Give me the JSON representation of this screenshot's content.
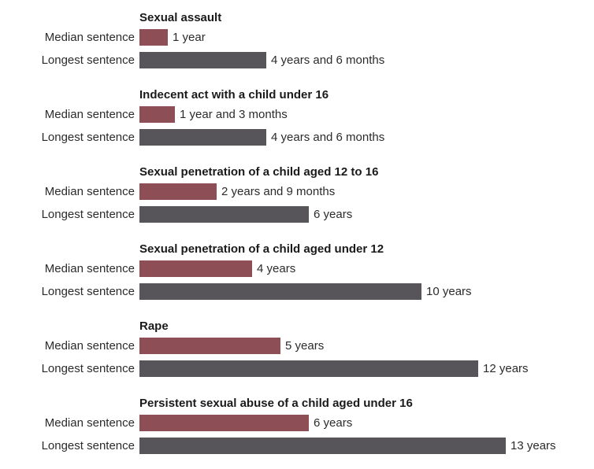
{
  "chart_data": {
    "type": "bar",
    "orientation": "horizontal",
    "title": "",
    "unit": "years",
    "xlim": [
      0,
      13
    ],
    "grid": false,
    "legend": "none",
    "row_labels": {
      "median": "Median sentence",
      "longest": "Longest sentence"
    },
    "colors": {
      "median_bar": "#8e4e55",
      "longest_bar": "#57555a",
      "title_text": "#1a1a1a",
      "label_text": "#2b2b2b",
      "background": "#ffffff"
    },
    "groups": [
      {
        "title": "Sexual assault",
        "median_years": 1,
        "median_label": "1 year",
        "longest_years": 4.5,
        "longest_label": "4 years and 6 months"
      },
      {
        "title": "Indecent act with a child under 16",
        "median_years": 1.25,
        "median_label": "1 year and 3 months",
        "longest_years": 4.5,
        "longest_label": "4 years and 6 months"
      },
      {
        "title": "Sexual penetration of a child aged 12 to 16",
        "median_years": 2.75,
        "median_label": "2 years and 9 months",
        "longest_years": 6,
        "longest_label": "6 years"
      },
      {
        "title": "Sexual penetration of a child aged under 12",
        "median_years": 4,
        "median_label": "4 years",
        "longest_years": 10,
        "longest_label": "10 years"
      },
      {
        "title": "Rape",
        "median_years": 5,
        "median_label": "5 years",
        "longest_years": 12,
        "longest_label": "12 years"
      },
      {
        "title": "Persistent sexual abuse of a child aged under 16",
        "median_years": 6,
        "median_label": "6 years",
        "longest_years": 13,
        "longest_label": "13 years"
      }
    ]
  }
}
